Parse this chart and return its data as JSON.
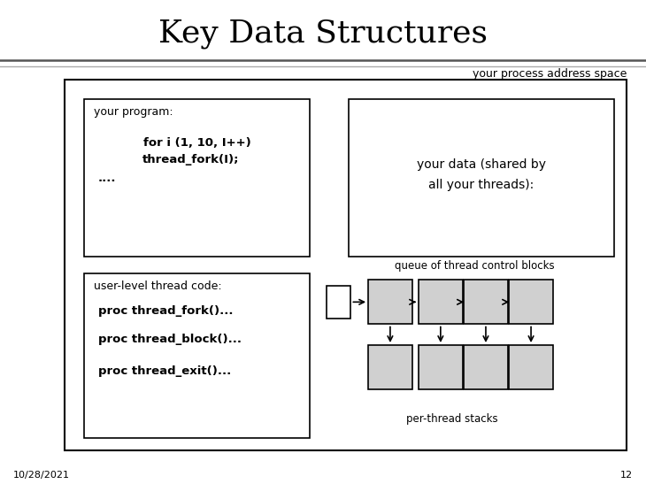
{
  "title": "Key Data Structures",
  "title_fontsize": 26,
  "title_font": "DejaVu Serif",
  "bg_color": "#ffffff",
  "date_text": "10/28/2021",
  "page_num": "12",
  "process_address_label": "your process address space",
  "program_label": "your program:",
  "program_code_line1": "for i (1, 10, I++)",
  "program_code_line2": "thread_fork(I);",
  "program_code_line3": "....",
  "data_label_line1": "your data (shared by",
  "data_label_line2": "all your threads):",
  "thread_code_label": "user-level thread code:",
  "thread_code_line1": "proc thread_fork()...",
  "thread_code_line2": "proc thread_block()...",
  "thread_code_line3": "proc thread_exit()...",
  "queue_label": "queue of thread control blocks",
  "per_thread_label": "per-thread stacks",
  "box_color": "#d0d0d0",
  "line_color": "#000000",
  "text_color": "#000000",
  "sep_color1": "#555555",
  "sep_color2": "#aaaaaa"
}
